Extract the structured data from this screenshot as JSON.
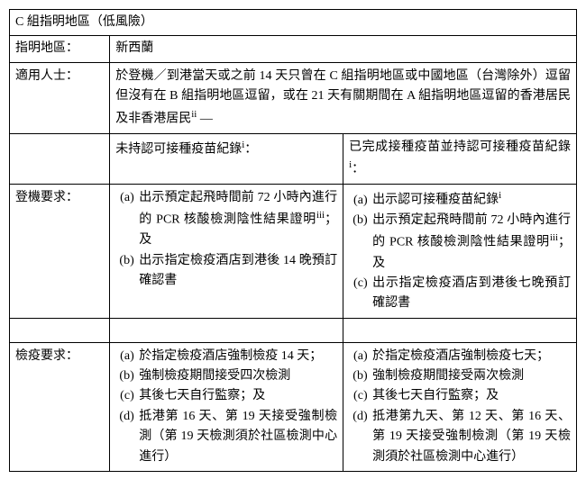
{
  "colors": {
    "background": "#ffffff",
    "text": "#000000",
    "border": "#000000"
  },
  "table": {
    "title": "C 組指明地區（低風險）",
    "region_label": "指明地區：",
    "region_value": "新西蘭",
    "persons_label": "適用人士：",
    "persons_value": "於登機／到港當天或之前 14 天只曾在 C 組指明地區或中國地區（台灣除外）逗留但沒有在 B 組指明地區逗留，或在 21 天有關期間在 A 組指明地區逗留的香港居民及非香港居民",
    "persons_sup": "ii",
    "persons_tail": " —",
    "col_left_header": "未持認可接種疫苗紀錄",
    "col_left_sup": "i",
    "col_left_tail": "：",
    "col_right_header": "已完成接種疫苗並持認可接種疫苗紀錄",
    "col_right_sup": "i",
    "col_right_tail": "：",
    "boarding_label": "登機要求：",
    "boarding_left": [
      {
        "text": "出示預定起飛時間前 72 小時內進行的 PCR 核酸檢測陰性結果證明",
        "sup": "iii",
        "tail": "；及"
      },
      {
        "text": "出示指定檢疫酒店到港後 14 晚預訂確認書",
        "sup": "",
        "tail": ""
      }
    ],
    "boarding_right": [
      {
        "text": "出示認可接種疫苗紀錄",
        "sup": "i",
        "tail": ""
      },
      {
        "text": "出示預定起飛時間前 72 小時內進行的 PCR 核酸檢測陰性結果證明",
        "sup": "iii",
        "tail": "；及"
      },
      {
        "text": "出示指定檢疫酒店到港後七晚預訂確認書",
        "sup": "",
        "tail": ""
      }
    ],
    "quarantine_label": "檢疫要求：",
    "quarantine_left": [
      {
        "text": "於指定檢疫酒店強制檢疫 14 天；"
      },
      {
        "text": "強制檢疫期間接受四次檢測"
      },
      {
        "text": "其後七天自行監察；及"
      },
      {
        "text": "抵港第 16 天、第 19 天接受強制檢測（第 19 天檢測須於社區檢測中心進行）"
      }
    ],
    "quarantine_right": [
      {
        "text": "於指定檢疫酒店強制檢疫七天；"
      },
      {
        "text": "強制檢疫期間接受兩次檢測"
      },
      {
        "text": "其後七天自行監察；及"
      },
      {
        "text": "抵港第九天、第 12 天、第 16 天、第 19 天接受強制檢測（第 19 天檢測須於社區檢測中心進行）"
      }
    ]
  }
}
